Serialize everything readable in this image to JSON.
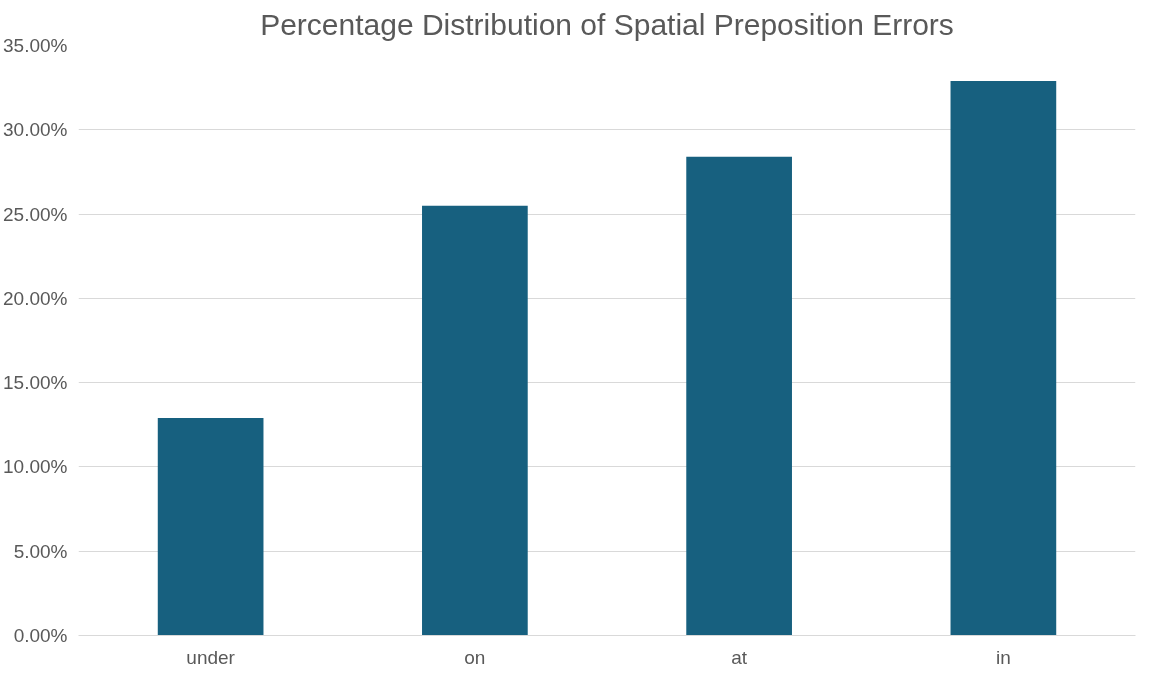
{
  "chart_data": {
    "type": "bar",
    "title": "Percentage Distribution of Spatial Preposition Errors",
    "categories": [
      "under",
      "on",
      "at",
      "in"
    ],
    "values": [
      12.9,
      25.5,
      28.4,
      32.9
    ],
    "color": "#17607f",
    "ylim": [
      0,
      35
    ],
    "yticks": [
      {
        "value": 0,
        "label": "0.00%"
      },
      {
        "value": 5,
        "label": "5.00%"
      },
      {
        "value": 10,
        "label": "10.00%"
      },
      {
        "value": 15,
        "label": "15.00%"
      },
      {
        "value": 20,
        "label": "20.00%"
      },
      {
        "value": 25,
        "label": "25.00%"
      },
      {
        "value": 30,
        "label": "30.00%"
      },
      {
        "value": 35,
        "label": "35.00%"
      }
    ],
    "grid": "y"
  }
}
